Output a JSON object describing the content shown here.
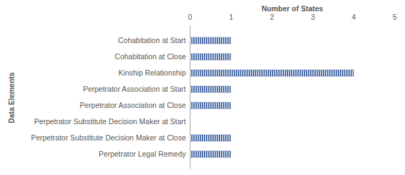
{
  "chart_data": {
    "type": "bar",
    "orientation": "horizontal",
    "x_label": "Number of States",
    "y_label": "Data Elements",
    "categories": [
      "Cohabitation at Start",
      "Cohabitation at Close",
      "Kinship Relationship",
      "Perpetrator Association at Start",
      "Perpetrator Association at Close",
      "Perpetrator Substitute Decision Maker at Start",
      "Perpetrator Substitute Decision Maker at Close",
      "Perpetrator Legal Remedy"
    ],
    "values": [
      1,
      1,
      4,
      1,
      1,
      0,
      1,
      1
    ],
    "color": "#4f6fa8",
    "xlim": [
      0,
      5
    ],
    "xticks": [
      0,
      1,
      2,
      3,
      4,
      5
    ],
    "grid": false
  }
}
